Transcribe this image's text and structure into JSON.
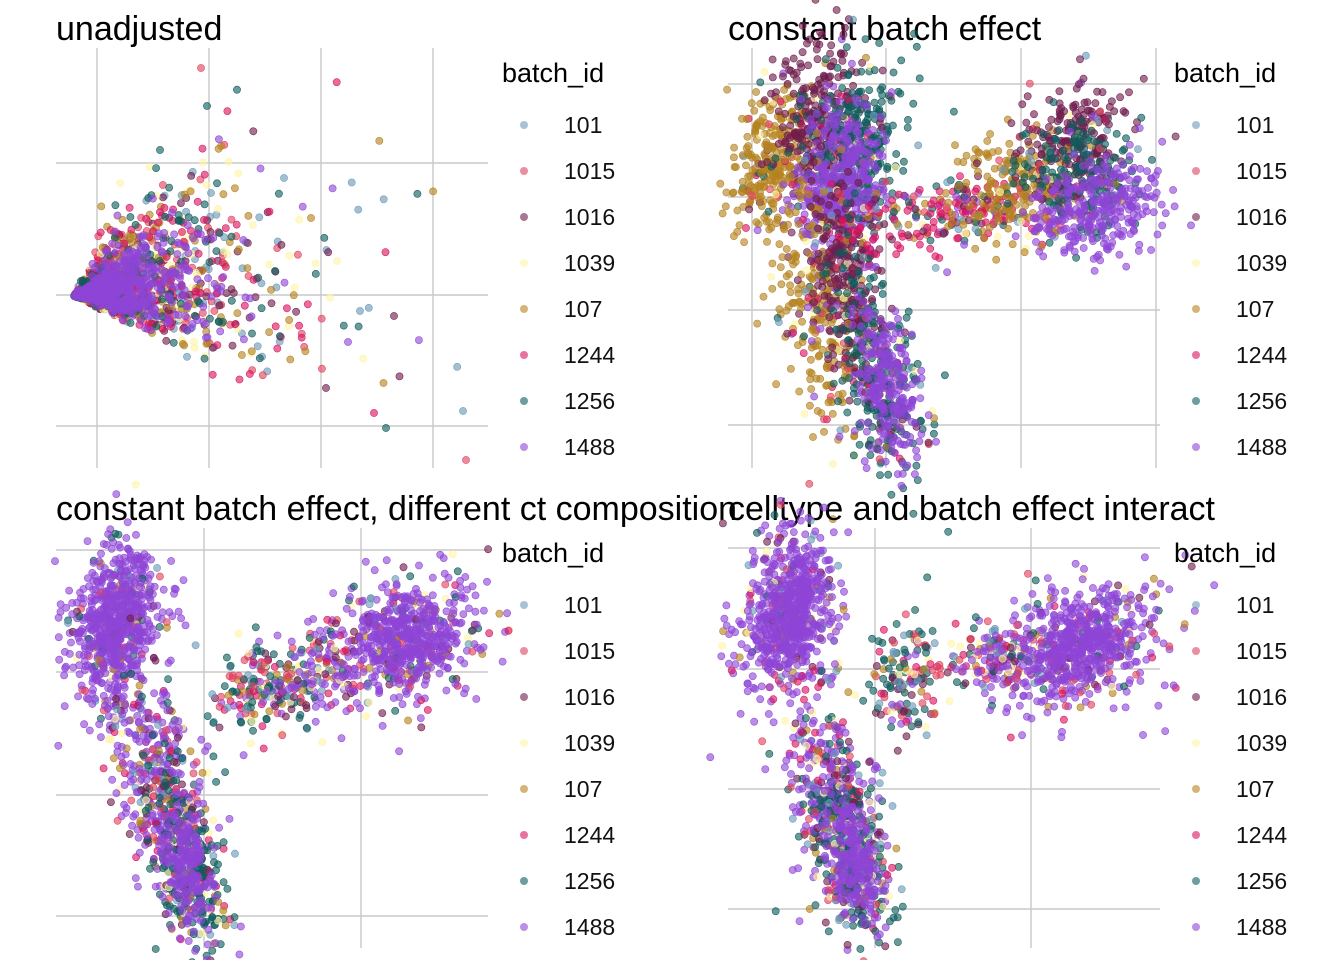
{
  "batches": [
    {
      "id": "101",
      "label": "101",
      "color": "#6a99b8"
    },
    {
      "id": "1015",
      "label": "1015",
      "color": "#e0425f"
    },
    {
      "id": "1016",
      "label": "1016",
      "color": "#6f1d4d"
    },
    {
      "id": "1039",
      "label": "1039",
      "color": "#fff3a6"
    },
    {
      "id": "107",
      "label": "107",
      "color": "#b5821f"
    },
    {
      "id": "1244",
      "label": "1244",
      "color": "#d9135f"
    },
    {
      "id": "1256",
      "label": "1256",
      "color": "#0e5c5c"
    },
    {
      "id": "1488",
      "label": "1488",
      "color": "#8e45d6"
    }
  ],
  "legend_title": "batch_id",
  "chart_data": [
    {
      "type": "scatter",
      "title": "unadjusted",
      "xlabel": "",
      "ylabel": "",
      "grid": true,
      "legend_position": "right",
      "description_shape": "fan",
      "clusters": [
        {
          "kind": "fan",
          "cx": 0.02,
          "cy": 0.5,
          "spread": 1
        }
      ]
    },
    {
      "type": "scatter",
      "title": "constant batch effect",
      "xlabel": "",
      "ylabel": "",
      "grid": true,
      "legend_position": "right",
      "description_shape": "three-arm"
    },
    {
      "type": "scatter",
      "title": "constant batch effect, different ct composition",
      "xlabel": "",
      "ylabel": "",
      "grid": true,
      "legend_position": "right",
      "description_shape": "three-arm"
    },
    {
      "type": "scatter",
      "title": "celltype and batch effect interact",
      "xlabel": "",
      "ylabel": "",
      "grid": true,
      "legend_position": "right",
      "description_shape": "three-arm"
    }
  ]
}
